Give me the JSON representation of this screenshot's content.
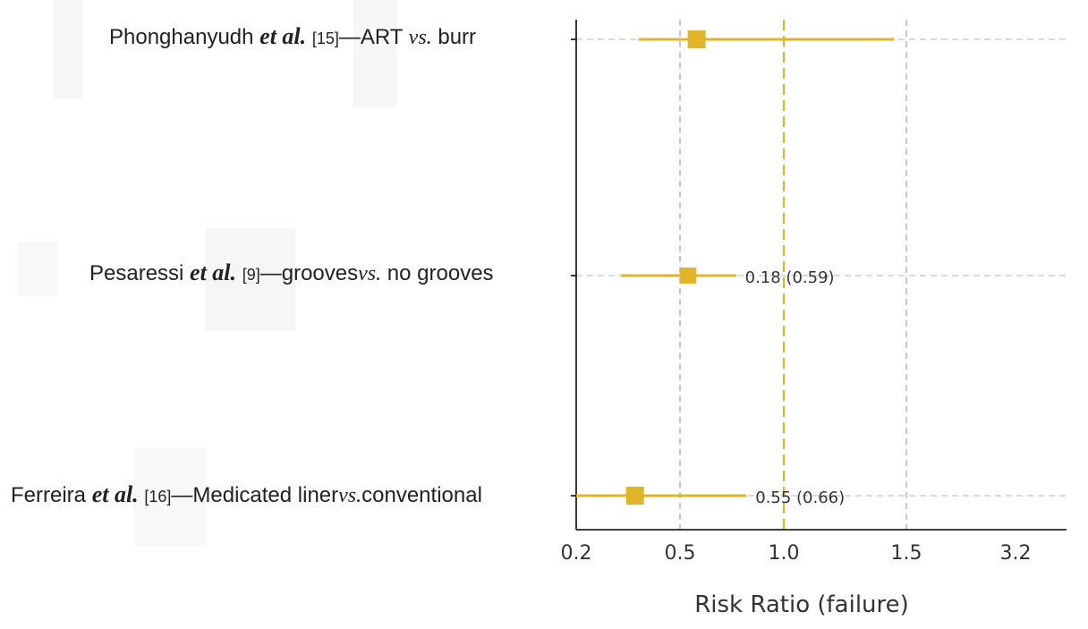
{
  "colors": {
    "accent": "#e0b628",
    "grid": "#b5b5b5",
    "text": "#222222"
  },
  "chart_data": {
    "type": "forest",
    "xlabel": "Risk Ratio (failure)",
    "x_ticks": [
      "0.2",
      "0.5",
      "1.0",
      "1.5",
      "3.2"
    ],
    "reference_line": 1.0,
    "studies": [
      {
        "author": "Phonghanyudh",
        "etal": "et al.",
        "ref": "[15]",
        "dash": "—",
        "arm1": "ART",
        "vs": "vs.",
        "arm2": "burr",
        "estimate": 0.58,
        "ci": [
          0.38,
          1.45
        ],
        "annotation": ""
      },
      {
        "author": "Pesaressi",
        "etal": "et al.",
        "ref": "[9]",
        "dash": "—",
        "arm1": "grooves",
        "vs": "vs.",
        "arm2": "no grooves",
        "estimate": 0.54,
        "ci": [
          0.33,
          0.77
        ],
        "annotation": "0.18 (0.59)"
      },
      {
        "author": "Ferreira",
        "etal": "et al.",
        "ref": "[16]",
        "dash": "—",
        "arm1": "Medicated liner",
        "vs": "vs.",
        "arm2": "conventional",
        "estimate": 0.37,
        "ci": [
          0.2,
          0.82
        ],
        "annotation": "0.55 (0.66)"
      }
    ]
  }
}
